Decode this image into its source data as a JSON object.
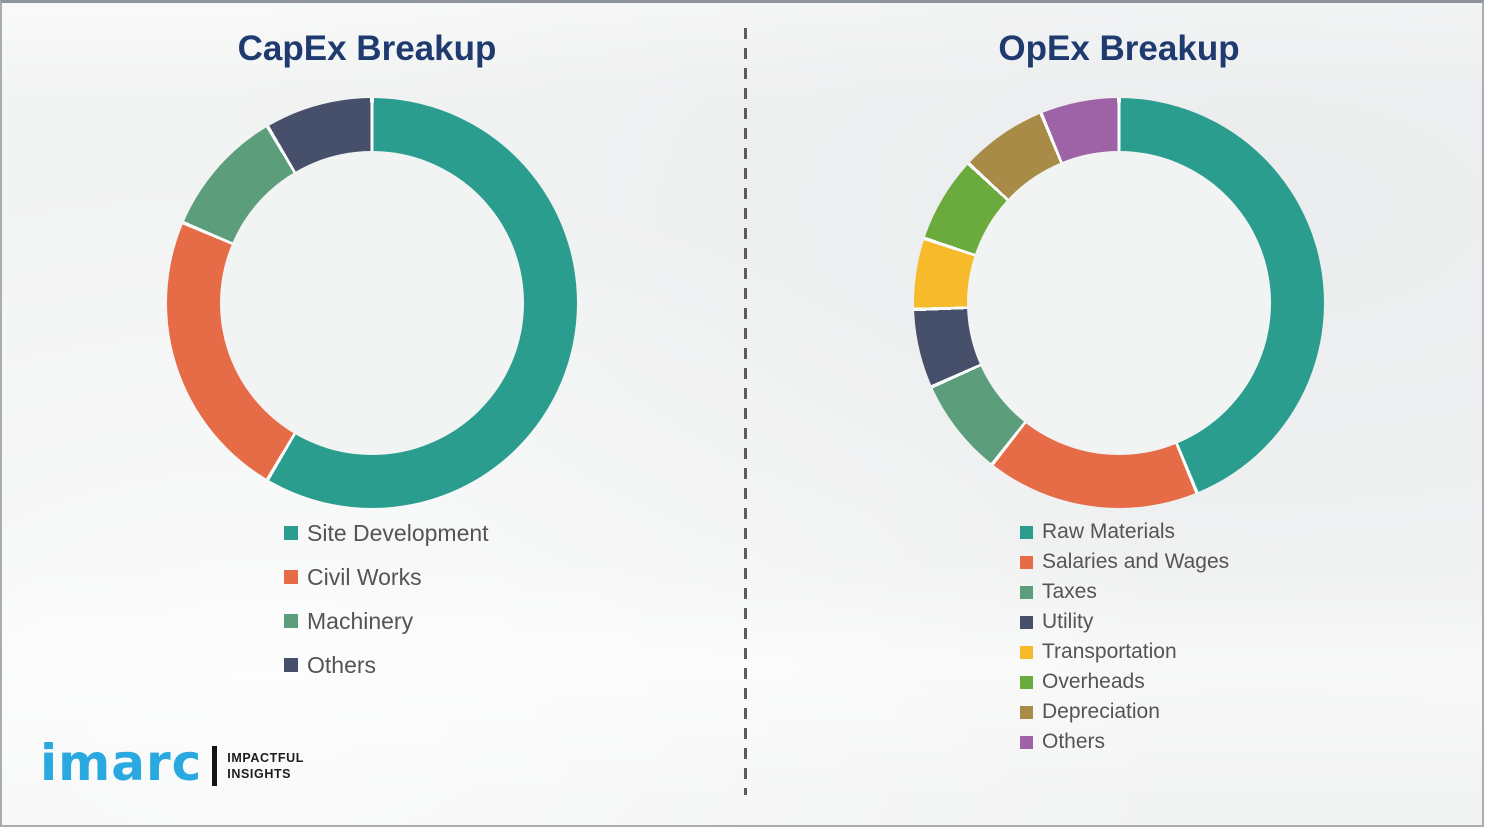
{
  "theme": {
    "title_color": "#1e3a6e",
    "legend_text_color": "#545454",
    "background_color": "#f2f3f3",
    "logo_blue": "#2aa9e1"
  },
  "chart_data": [
    {
      "type": "pie",
      "donut": true,
      "title": "CapEx Breakup",
      "categories": [
        "Site Development",
        "Civil Works",
        "Machinery",
        "Others"
      ],
      "values": [
        58.5,
        22.9,
        10.1,
        8.5
      ],
      "values_note": "percent, estimated from arc angles (no data labels shown)",
      "colors": [
        "#2a9d8f",
        "#e66c48",
        "#5c9e7c",
        "#47506b"
      ],
      "start_angle_deg": 0,
      "direction": "clockwise",
      "legend_position": "below-chart-left"
    },
    {
      "type": "pie",
      "donut": true,
      "title": "OpEx Breakup",
      "categories": [
        "Raw Materials",
        "Salaries and Wages",
        "Taxes",
        "Utility",
        "Transportation",
        "Overheads",
        "Depreciation",
        "Others"
      ],
      "values": [
        43.8,
        16.8,
        7.7,
        6.2,
        5.6,
        6.8,
        6.9,
        6.2
      ],
      "values_note": "percent, estimated from arc angles (no data labels shown)",
      "colors": [
        "#2a9d8f",
        "#e66c48",
        "#5c9e7c",
        "#47506b",
        "#f7ba2b",
        "#6bab3e",
        "#a78b46",
        "#9e63a6"
      ],
      "start_angle_deg": 0,
      "direction": "clockwise",
      "legend_position": "below-chart-left"
    }
  ],
  "logo": {
    "brand": "imarc",
    "tagline": [
      "IMPACTFUL",
      "INSIGHTS"
    ]
  }
}
